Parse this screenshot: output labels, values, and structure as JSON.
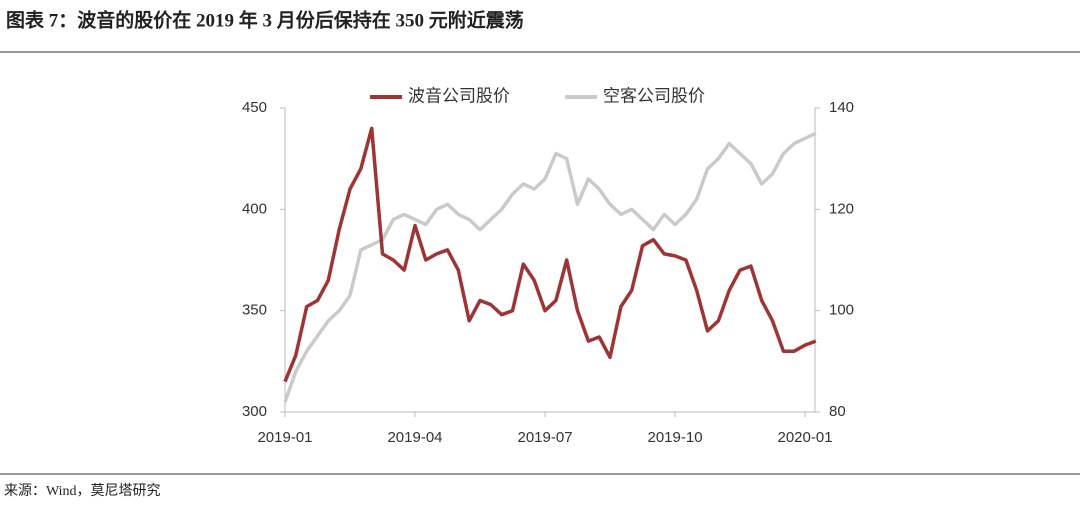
{
  "chart_data": {
    "type": "line",
    "title": "图表 7：波音的股价在 2019 年 3 月份后保持在 350 元附近震荡",
    "source": "来源：Wind，莫尼塔研究",
    "x": [
      "2019-01",
      "2019-01",
      "2019-01",
      "2019-01",
      "2019-02",
      "2019-02",
      "2019-02",
      "2019-02",
      "2019-03",
      "2019-03",
      "2019-03",
      "2019-03",
      "2019-04",
      "2019-04",
      "2019-04",
      "2019-04",
      "2019-05",
      "2019-05",
      "2019-05",
      "2019-05",
      "2019-06",
      "2019-06",
      "2019-06",
      "2019-06",
      "2019-07",
      "2019-07",
      "2019-07",
      "2019-07",
      "2019-08",
      "2019-08",
      "2019-08",
      "2019-08",
      "2019-09",
      "2019-09",
      "2019-09",
      "2019-09",
      "2019-10",
      "2019-10",
      "2019-10",
      "2019-10",
      "2019-11",
      "2019-11",
      "2019-11",
      "2019-11",
      "2019-12",
      "2019-12",
      "2019-12",
      "2019-12",
      "2020-01",
      "2020-01"
    ],
    "xticks": [
      "2019-01",
      "2019-04",
      "2019-07",
      "2019-10",
      "2020-01"
    ],
    "series": [
      {
        "name": "波音公司股价",
        "color": "#9e3434",
        "axis": "y",
        "values": [
          315,
          328,
          352,
          355,
          365,
          390,
          410,
          420,
          440,
          378,
          375,
          370,
          392,
          375,
          378,
          380,
          370,
          345,
          355,
          353,
          348,
          350,
          373,
          365,
          350,
          355,
          375,
          350,
          335,
          337,
          327,
          352,
          360,
          382,
          385,
          378,
          377,
          375,
          360,
          340,
          345,
          360,
          370,
          372,
          355,
          345,
          330,
          330,
          333,
          335
        ]
      },
      {
        "name": "空客公司股价",
        "color": "#cacaca",
        "axis": "y2",
        "values": [
          82,
          88,
          92,
          95,
          98,
          100,
          103,
          112,
          113,
          114,
          118,
          119,
          118,
          117,
          120,
          121,
          119,
          118,
          116,
          118,
          120,
          123,
          125,
          124,
          126,
          131,
          130,
          121,
          126,
          124,
          121,
          119,
          120,
          118,
          116,
          119,
          117,
          119,
          122,
          128,
          130,
          133,
          131,
          129,
          125,
          127,
          131,
          133,
          134,
          135
        ]
      }
    ],
    "ylim": [
      300,
      450
    ],
    "yticks": [
      300,
      350,
      400,
      450
    ],
    "y2lim": [
      80,
      140
    ],
    "y2ticks": [
      80,
      100,
      120,
      140
    ]
  }
}
